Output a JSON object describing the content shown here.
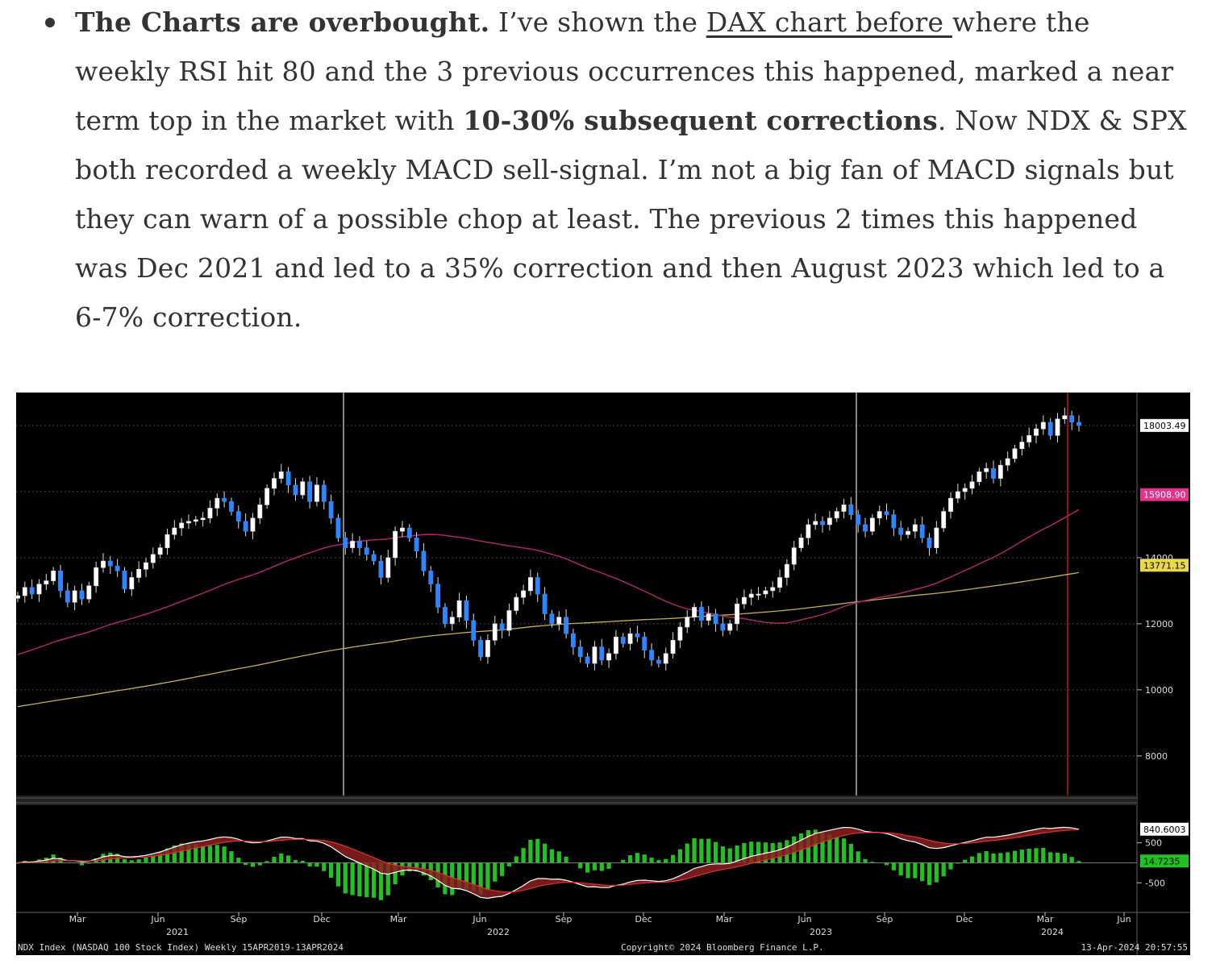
{
  "article": {
    "lead_bold": "The Charts are overbought.",
    "t1": " I’ve shown the ",
    "link": "DAX chart before ",
    "t2": "where the weekly RSI hit 80 and the 3 previous occurrences this happened, marked a near term top in the market with ",
    "bold2": "10-30% subsequent corrections",
    "t3": ". Now NDX & SPX both recorded a weekly MACD sell-signal. I’m not a big fan of MACD signals but they can warn of a possible chop at least. The previous 2 times this happened was Dec 2021 and led to a 35% correction and then August 2023 which led to a 6-7% correction."
  },
  "chart": {
    "footer_left": "NDX Index (NASDAQ 100 Stock Index)  Weekly 15APR2019-13APR2024",
    "footer_center": "Copyright© 2024 Bloomberg Finance L.P.",
    "footer_right": "13-Apr-2024 20:57:55",
    "colors": {
      "up": "#ffffff",
      "down": "#2e86ff",
      "ma_fast": "#b0246a",
      "ma_slow": "#c2b24a",
      "macd": "#ffffff",
      "signal": "#e03030",
      "hist": "#22c022",
      "last_badge": "#ffffff",
      "ma_fast_badge": "#e0338a",
      "ma_slow_badge": "#e8d84a",
      "hist_badge": "#22c022"
    }
  },
  "chart_data": {
    "type": "candlestick",
    "x_tick_labels": [
      "Mar",
      "Jun",
      "Sep",
      "Dec",
      "Mar",
      "Jun",
      "Sep",
      "Dec",
      "Mar",
      "Jun",
      "Sep",
      "Dec",
      "Mar",
      "Jun"
    ],
    "year_labels": [
      "2021",
      "2022",
      "2023",
      "2024"
    ],
    "y_ticks": [
      8000,
      10000,
      12000,
      14000
    ],
    "ylim": [
      6800,
      19000
    ],
    "price_labels": {
      "last": "18003.49",
      "ma_fast": "15908.90",
      "ma_slow": "13771.15"
    },
    "price_label_values": {
      "last": 18003.49,
      "ma_fast": 15908.9,
      "ma_slow": 13771.15
    },
    "weekly_close": [
      12850,
      13100,
      12900,
      13200,
      13300,
      13600,
      13000,
      12650,
      13000,
      12750,
      13150,
      13700,
      13900,
      13750,
      13600,
      13050,
      13400,
      13650,
      13850,
      14100,
      14300,
      14700,
      14900,
      15050,
      15100,
      15150,
      15200,
      15500,
      15800,
      15700,
      15400,
      15100,
      14800,
      15200,
      15600,
      16100,
      16400,
      16600,
      16200,
      15900,
      16300,
      15700,
      16200,
      15700,
      15200,
      14600,
      14300,
      14500,
      14300,
      14100,
      13900,
      13400,
      14000,
      14800,
      14900,
      14600,
      14200,
      13600,
      13200,
      12500,
      12000,
      12200,
      12700,
      12100,
      11500,
      11000,
      11500,
      12000,
      11800,
      12400,
      12800,
      13000,
      13400,
      12900,
      12300,
      12000,
      12200,
      11700,
      11300,
      11000,
      10800,
      11300,
      10900,
      11100,
      11600,
      11400,
      11700,
      11600,
      11200,
      10900,
      10800,
      11100,
      11500,
      11900,
      12200,
      12500,
      12100,
      12300,
      12000,
      11800,
      12000,
      12600,
      12800,
      12900,
      12900,
      13000,
      13100,
      13400,
      13800,
      14300,
      14600,
      15000,
      15100,
      15000,
      15200,
      15400,
      15600,
      15300,
      15000,
      14800,
      15200,
      15400,
      15300,
      14900,
      14700,
      14800,
      15000,
      14600,
      14300,
      14900,
      15400,
      15800,
      16000,
      16100,
      16300,
      16600,
      16700,
      16400,
      16800,
      17000,
      17300,
      17500,
      17700,
      17900,
      18100,
      17700,
      18200,
      18300,
      18100,
      18003
    ]
  }
}
